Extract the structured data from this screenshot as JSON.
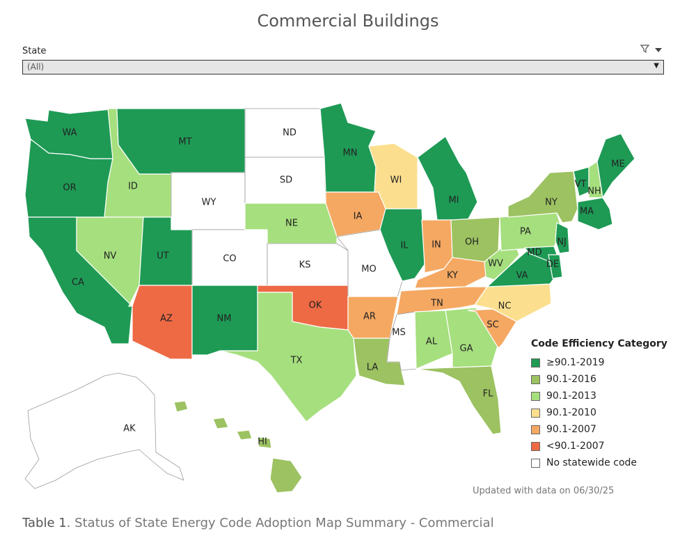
{
  "title": "Commercial Buildings",
  "filter": {
    "label": "State",
    "value": "(All)",
    "filter_icon": "filter-icon",
    "menu_icon": "dropdown-arrow-icon"
  },
  "colors": {
    "c2019": "#1e9a55",
    "c2016": "#9cc261",
    "c2013": "#a6df7e",
    "c2010": "#fbdf8e",
    "c2007": "#f5a862",
    "lt2007": "#ee6a45",
    "none": "#ffffff"
  },
  "states": [
    {
      "abbr": "WA",
      "category": "c2019"
    },
    {
      "abbr": "OR",
      "category": "c2019"
    },
    {
      "abbr": "CA",
      "category": "c2019"
    },
    {
      "abbr": "ID",
      "category": "c2013"
    },
    {
      "abbr": "NV",
      "category": "c2013"
    },
    {
      "abbr": "MT",
      "category": "c2019"
    },
    {
      "abbr": "WY",
      "category": "none"
    },
    {
      "abbr": "UT",
      "category": "c2019"
    },
    {
      "abbr": "CO",
      "category": "none"
    },
    {
      "abbr": "AZ",
      "category": "lt2007"
    },
    {
      "abbr": "NM",
      "category": "c2019"
    },
    {
      "abbr": "ND",
      "category": "none"
    },
    {
      "abbr": "SD",
      "category": "none"
    },
    {
      "abbr": "NE",
      "category": "c2013"
    },
    {
      "abbr": "KS",
      "category": "none"
    },
    {
      "abbr": "OK",
      "category": "lt2007"
    },
    {
      "abbr": "TX",
      "category": "c2013"
    },
    {
      "abbr": "MN",
      "category": "c2019"
    },
    {
      "abbr": "IA",
      "category": "c2007"
    },
    {
      "abbr": "MO",
      "category": "none"
    },
    {
      "abbr": "AR",
      "category": "c2007"
    },
    {
      "abbr": "LA",
      "category": "c2016"
    },
    {
      "abbr": "WI",
      "category": "c2010"
    },
    {
      "abbr": "IL",
      "category": "c2019"
    },
    {
      "abbr": "MI",
      "category": "c2019"
    },
    {
      "abbr": "IN",
      "category": "c2007"
    },
    {
      "abbr": "OH",
      "category": "c2016"
    },
    {
      "abbr": "KY",
      "category": "c2007"
    },
    {
      "abbr": "TN",
      "category": "c2007"
    },
    {
      "abbr": "MS",
      "category": "none"
    },
    {
      "abbr": "AL",
      "category": "c2013"
    },
    {
      "abbr": "GA",
      "category": "c2013"
    },
    {
      "abbr": "FL",
      "category": "c2016"
    },
    {
      "abbr": "SC",
      "category": "c2007"
    },
    {
      "abbr": "NC",
      "category": "c2010"
    },
    {
      "abbr": "VA",
      "category": "c2019"
    },
    {
      "abbr": "WV",
      "category": "c2013"
    },
    {
      "abbr": "PA",
      "category": "c2013"
    },
    {
      "abbr": "NY",
      "category": "c2016"
    },
    {
      "abbr": "VT",
      "category": "c2019"
    },
    {
      "abbr": "NH",
      "category": "c2013"
    },
    {
      "abbr": "ME",
      "category": "c2019"
    },
    {
      "abbr": "MA",
      "category": "c2019"
    },
    {
      "abbr": "NJ",
      "category": "c2019"
    },
    {
      "abbr": "MD",
      "category": "c2019"
    },
    {
      "abbr": "DE",
      "category": "c2019"
    },
    {
      "abbr": "AK",
      "category": "none"
    },
    {
      "abbr": "HI",
      "category": "c2016"
    }
  ],
  "legend": {
    "title": "Code Efficiency Category",
    "items": [
      {
        "label": "≥90.1-2019",
        "color": "#1e9a55"
      },
      {
        "label": "90.1-2016",
        "color": "#9cc261"
      },
      {
        "label": "90.1-2013",
        "color": "#a6df7e"
      },
      {
        "label": "90.1-2010",
        "color": "#fbdf8e"
      },
      {
        "label": "90.1-2007",
        "color": "#f5a862"
      },
      {
        "label": "<90.1-2007",
        "color": "#ee6a45"
      },
      {
        "label": "No statewide code",
        "color": "#ffffff"
      }
    ]
  },
  "updated": "Updated with data on 06/30/25",
  "caption": {
    "label": "Table 1",
    "text": ". Status of State Energy Code Adoption Map Summary - Commercial"
  }
}
